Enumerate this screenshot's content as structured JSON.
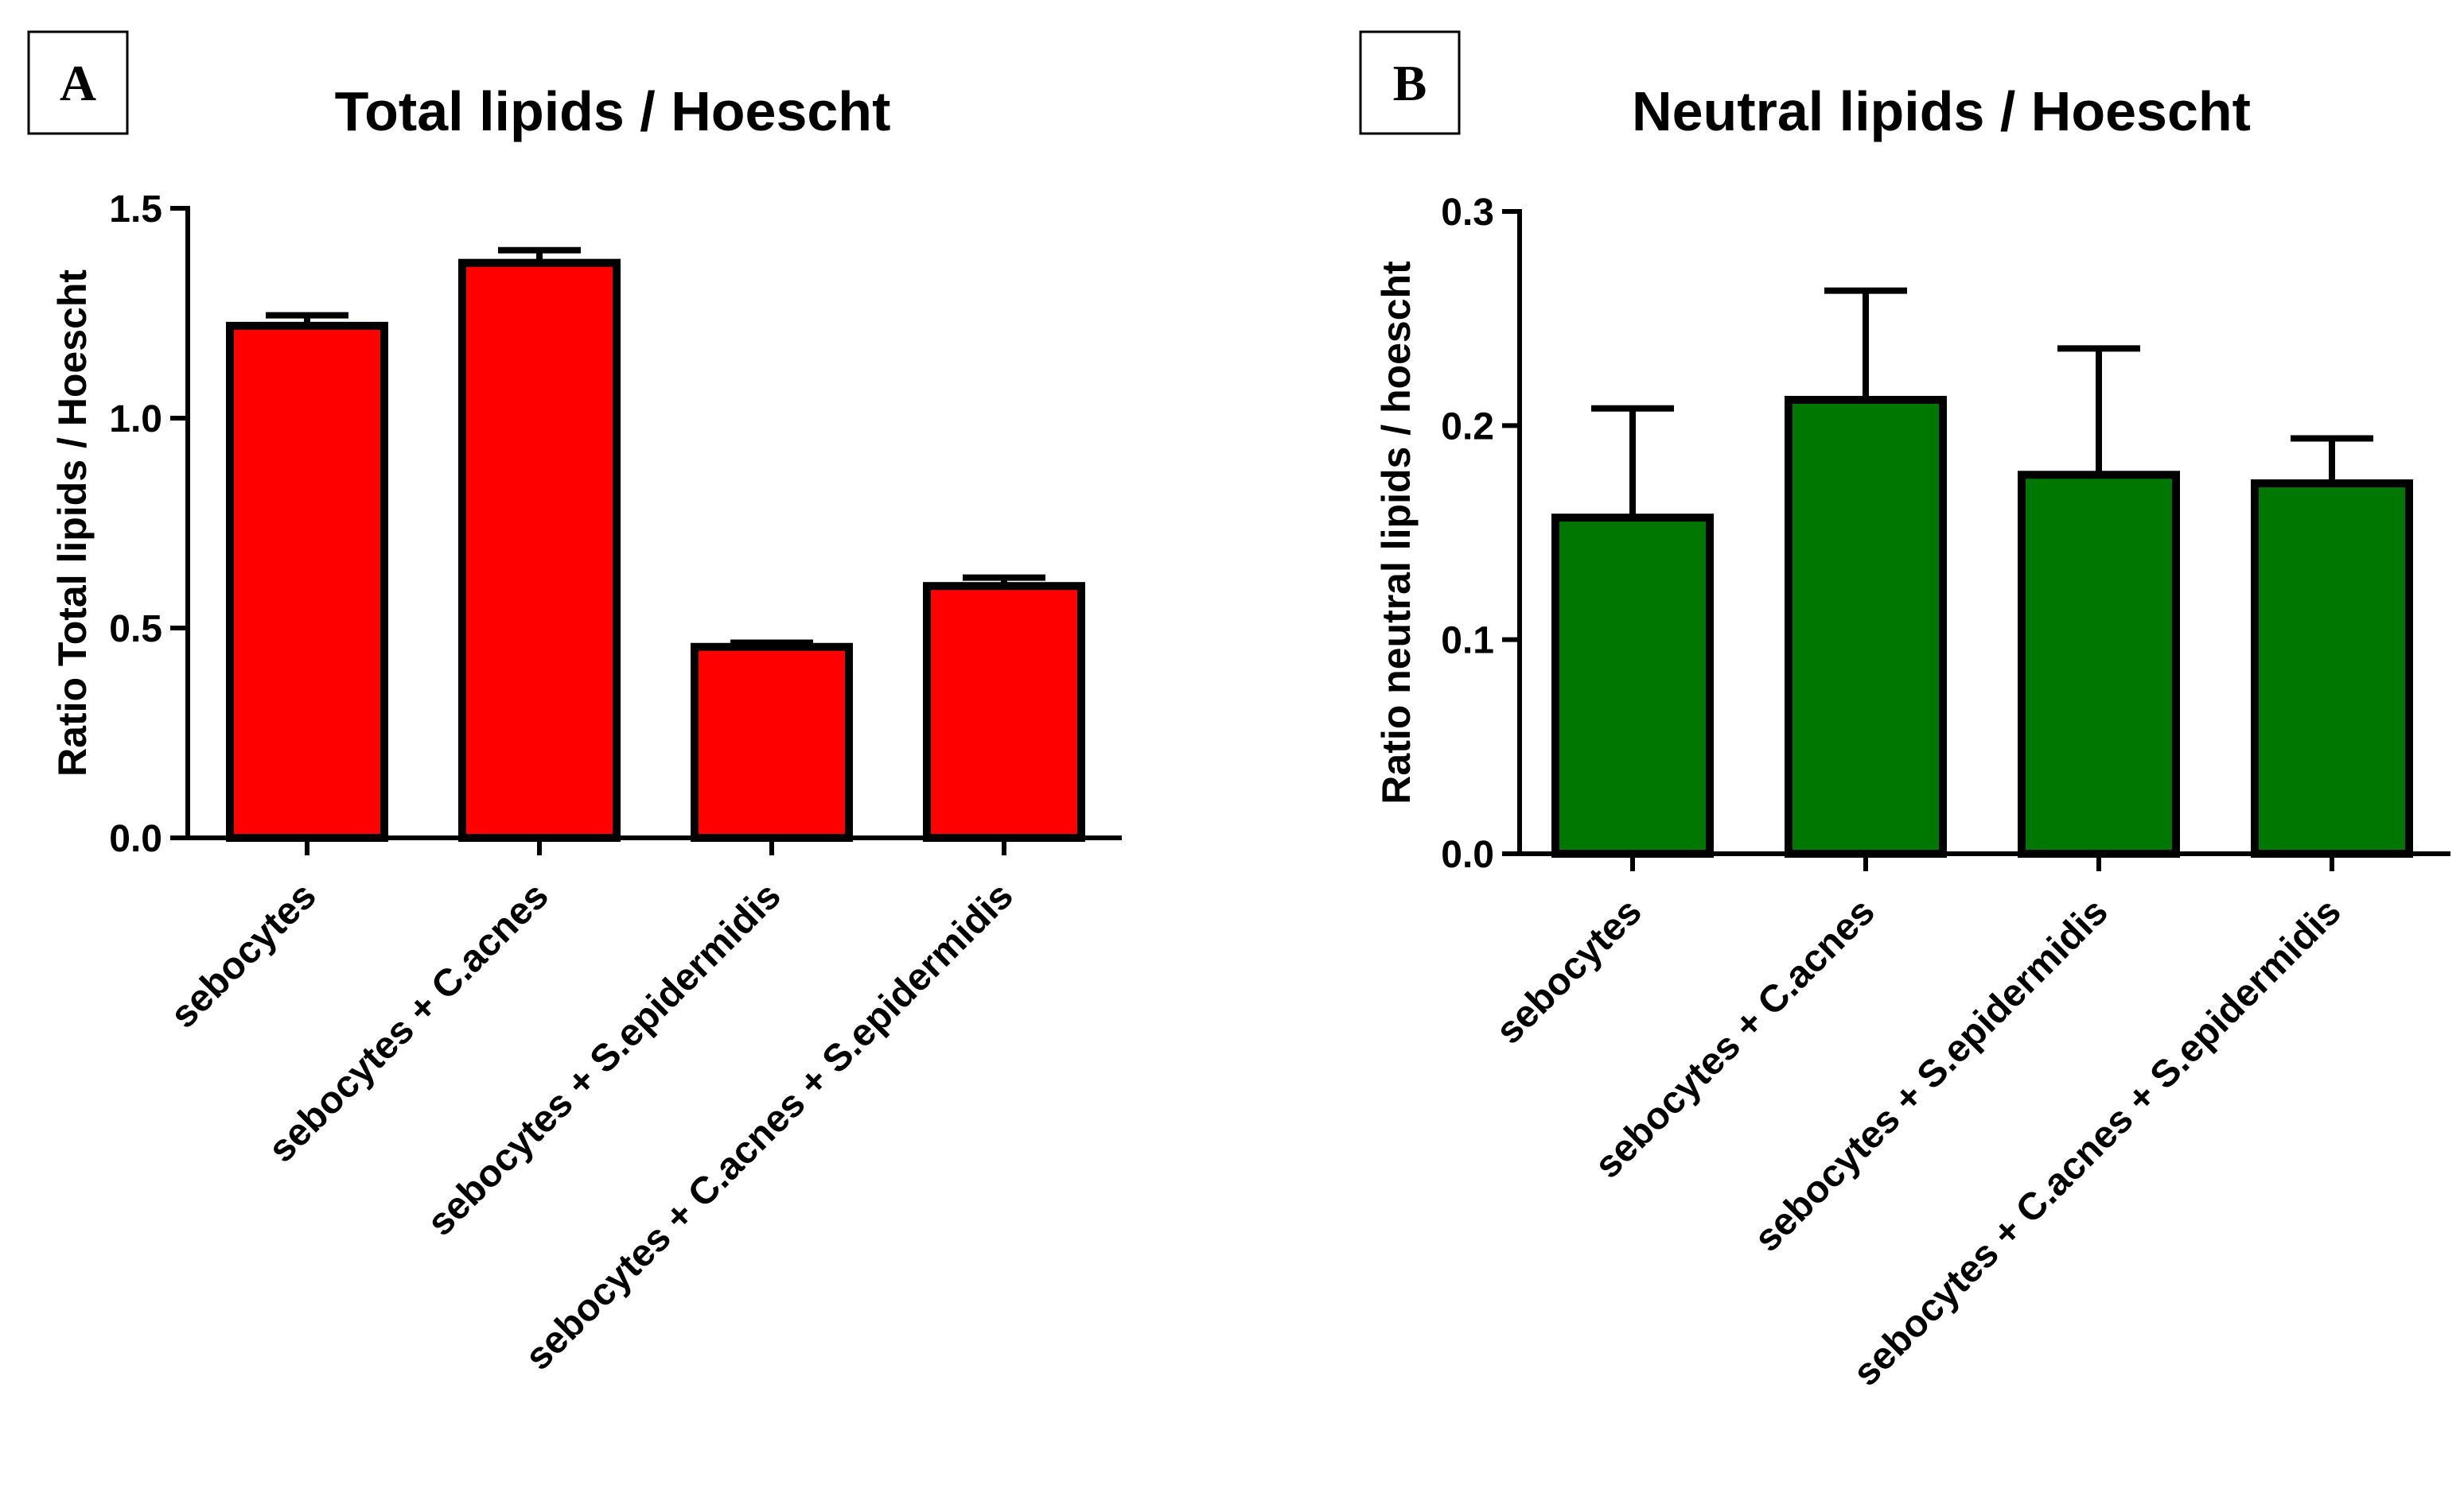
{
  "chart_data": [
    {
      "type": "bar",
      "panel_label": "A",
      "title": "Total lipids / Hoescht",
      "y_label": "Ratio Total lipids / Hoescht",
      "categories": [
        "sebocytes",
        "sebocytes + C.acnes",
        "sebocytes + S.epidermidis",
        "sebocytes + C.acnes + S.epidermidis"
      ],
      "values": [
        1.22,
        1.37,
        0.455,
        0.6
      ],
      "errors": [
        0.025,
        0.03,
        0.01,
        0.02
      ],
      "color": "#ff0000",
      "ylim": [
        0,
        1.5
      ],
      "yticks": [
        {
          "value": 0,
          "label": "0.0"
        },
        0.5,
        {
          "value": 1,
          "label": "1.0"
        },
        1.5
      ]
    },
    {
      "type": "bar",
      "panel_label": "B",
      "title": "Neutral lipids / Hoescht",
      "y_label": "Ratio neutral lipids / hoescht",
      "categories": [
        "sebocytes",
        "sebocytes + C.acnes",
        "sebocytes + S.epidermidis",
        "sebocytes + C.acnes + S.epidermidis"
      ],
      "values": [
        0.157,
        0.212,
        0.177,
        0.173
      ],
      "errors": [
        0.051,
        0.051,
        0.059,
        0.021
      ],
      "color": "#007700",
      "ylim": [
        0,
        0.3
      ],
      "yticks": [
        {
          "value": 0,
          "label": "0.0"
        },
        0.1,
        0.2,
        0.3
      ]
    }
  ]
}
